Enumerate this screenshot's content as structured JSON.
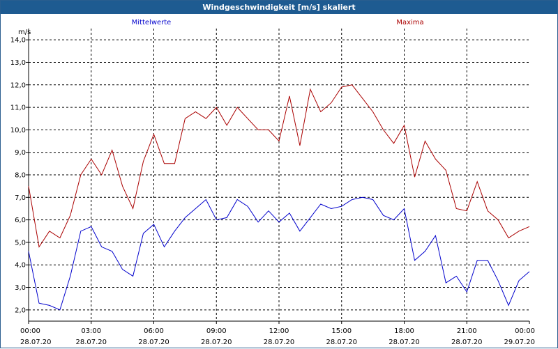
{
  "window": {
    "title": "Windgeschwindigkeit [m/s] skaliert"
  },
  "colors": {
    "mean": "#0000cc",
    "max": "#aa0000",
    "grid": "#000000",
    "title_bg": "#1e5b91"
  },
  "chart_data": {
    "type": "line",
    "title": "Windgeschwindigkeit [m/s] skaliert",
    "ylabel": "m/s",
    "xlabel": "",
    "ylim": [
      1.5,
      14.5
    ],
    "xlim": [
      0,
      24
    ],
    "grid": true,
    "yticks": [
      "2,0",
      "3,0",
      "4,0",
      "5,0",
      "6,0",
      "7,0",
      "8,0",
      "9,0",
      "10,0",
      "11,0",
      "12,0",
      "13,0",
      "14,0"
    ],
    "ytick_values": [
      2,
      3,
      4,
      5,
      6,
      7,
      8,
      9,
      10,
      11,
      12,
      13,
      14
    ],
    "xticks": [
      {
        "x": 0,
        "time": "00:00",
        "date": "28.07.20"
      },
      {
        "x": 3,
        "time": "03:00",
        "date": "28.07.20"
      },
      {
        "x": 6,
        "time": "06:00",
        "date": "28.07.20"
      },
      {
        "x": 9,
        "time": "09:00",
        "date": "28.07.20"
      },
      {
        "x": 12,
        "time": "12:00",
        "date": "28.07.20"
      },
      {
        "x": 15,
        "time": "15:00",
        "date": "28.07.20"
      },
      {
        "x": 18,
        "time": "18:00",
        "date": "28.07.20"
      },
      {
        "x": 21,
        "time": "21:00",
        "date": "28.07.20"
      },
      {
        "x": 24,
        "time": "00:00",
        "date": "29.07.20"
      }
    ],
    "x": [
      0.0,
      0.5,
      1.0,
      1.5,
      2.0,
      2.5,
      3.0,
      3.5,
      4.0,
      4.5,
      5.0,
      5.5,
      6.0,
      6.5,
      7.0,
      7.5,
      8.0,
      8.5,
      9.0,
      9.5,
      10.0,
      10.5,
      11.0,
      11.5,
      12.0,
      12.5,
      13.0,
      13.5,
      14.0,
      14.5,
      15.0,
      15.5,
      16.0,
      16.5,
      17.0,
      17.5,
      18.0,
      18.5,
      19.0,
      19.5,
      20.0,
      20.5,
      21.0,
      21.5,
      22.0,
      22.5,
      23.0,
      23.5,
      24.0
    ],
    "series": [
      {
        "name": "Mittelwerte",
        "color": "#0000cc",
        "values": [
          4.6,
          2.3,
          2.2,
          2.0,
          3.5,
          5.5,
          5.7,
          4.8,
          4.6,
          3.8,
          3.5,
          5.4,
          5.8,
          4.8,
          5.5,
          6.1,
          6.5,
          6.9,
          6.0,
          6.1,
          6.9,
          6.6,
          5.9,
          6.4,
          5.9,
          6.3,
          5.5,
          6.1,
          6.7,
          6.5,
          6.6,
          6.9,
          7.0,
          6.9,
          6.2,
          6.0,
          6.5,
          4.2,
          4.6,
          5.3,
          3.2,
          3.5,
          2.8,
          4.2,
          4.2,
          3.3,
          2.2,
          3.3,
          3.7
        ]
      },
      {
        "name": "Maxima",
        "color": "#aa0000",
        "values": [
          7.5,
          4.8,
          5.5,
          5.2,
          6.2,
          8.0,
          8.7,
          8.0,
          9.1,
          7.5,
          6.5,
          8.6,
          9.8,
          8.5,
          8.5,
          10.5,
          10.8,
          10.5,
          11.0,
          10.2,
          11.0,
          10.5,
          10.0,
          10.0,
          9.5,
          11.5,
          9.3,
          11.8,
          10.8,
          11.2,
          11.9,
          12.0,
          11.4,
          10.8,
          10.0,
          9.4,
          10.2,
          7.9,
          9.5,
          8.7,
          8.2,
          6.5,
          6.4,
          7.7,
          6.4,
          6.0,
          5.2,
          5.5,
          5.7
        ]
      }
    ]
  }
}
